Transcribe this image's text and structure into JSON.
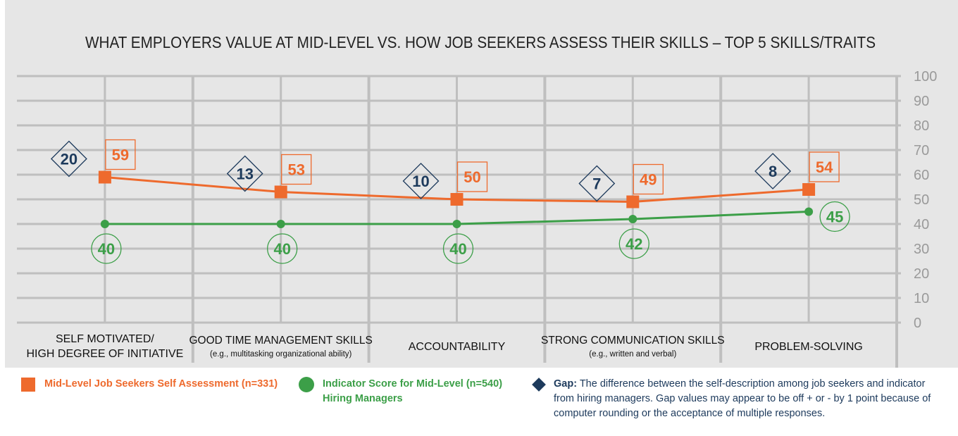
{
  "chart_data": {
    "type": "line",
    "title": "WHAT EMPLOYERS VALUE AT MID-LEVEL VS. HOW JOB SEEKERS ASSESS THEIR SKILLS – TOP 5 SKILLS/TRAITS",
    "ylim": [
      0,
      100
    ],
    "y_ticks": [
      "100",
      "90",
      "80",
      "70",
      "60",
      "50",
      "40",
      "30",
      "20",
      "10",
      "0"
    ],
    "categories": [
      {
        "line1": "SELF MOTIVATED/",
        "line2": "HIGH DEGREE OF INITIATIVE",
        "sub": ""
      },
      {
        "line1": "GOOD TIME MANAGEMENT SKILLS",
        "line2": "",
        "sub": "(e.g., multitasking organizational ability)"
      },
      {
        "line1": "ACCOUNTABILITY",
        "line2": "",
        "sub": ""
      },
      {
        "line1": "STRONG COMMUNICATION SKILLS",
        "line2": "",
        "sub": "(e.g., written and verbal)"
      },
      {
        "line1": "PROBLEM-SOLVING",
        "line2": "",
        "sub": ""
      }
    ],
    "series": [
      {
        "name": "Mid-Level Job Seekers Self Assessment (n=331)",
        "values": [
          59,
          53,
          50,
          49,
          54
        ],
        "labels": [
          "59",
          "53",
          "50",
          "49",
          "54"
        ],
        "color": "#ee6a2d"
      },
      {
        "name": "Indicator Score for Mid-Level (n=540) Hiring Managers",
        "values": [
          40,
          40,
          40,
          42,
          45
        ],
        "labels": [
          "40",
          "40",
          "40",
          "42",
          "45"
        ],
        "color": "#3c9f48"
      }
    ],
    "gap": {
      "values": [
        20,
        13,
        10,
        7,
        8
      ],
      "labels": [
        "20",
        "13",
        "10",
        "7",
        "8"
      ],
      "color": "#1d3a5c"
    }
  },
  "legend": {
    "orange": "Mid-Level Job Seekers Self Assessment (n=331)",
    "green": "Indicator Score for Mid-Level (n=540) Hiring Managers",
    "gap_label": "Gap:",
    "gap_text": "The difference between the self-description among job seekers and indicator from hiring managers. Gap values may appear to be off + or - by 1 point because of computer rounding or the acceptance of multiple responses."
  }
}
